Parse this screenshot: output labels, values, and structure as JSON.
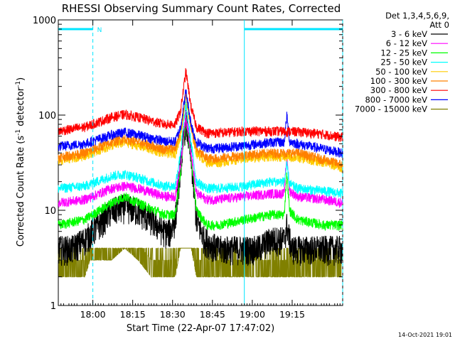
{
  "chart_data": {
    "type": "line",
    "title": "RHESSI Observing Summary Count Rates, Corrected",
    "xlabel": "Start Time (22-Apr-07 17:47:02)",
    "ylabel_parts": [
      "Corrected Count Rate (s",
      "-1",
      " detector",
      "-1",
      ")"
    ],
    "yscale": "log",
    "ylim": [
      1,
      1000
    ],
    "xlim_minutes": [
      0,
      107
    ],
    "x_ticks": [
      {
        "minute": 13,
        "label": "18:00"
      },
      {
        "minute": 28,
        "label": "18:15"
      },
      {
        "minute": 43,
        "label": "18:30"
      },
      {
        "minute": 58,
        "label": "18:45"
      },
      {
        "minute": 73,
        "label": "19:00"
      },
      {
        "minute": 88,
        "label": "19:15"
      }
    ],
    "y_ticks": [
      {
        "value": 1,
        "label": "1"
      },
      {
        "value": 10,
        "label": "10"
      },
      {
        "value": 100,
        "label": "100"
      },
      {
        "value": 1000,
        "label": "1000"
      }
    ],
    "legend_header": [
      "Det 1,3,4,5,6,9,",
      "Att 0"
    ],
    "series": [
      {
        "name": "3 - 6 keV",
        "color": "#000000",
        "x": [
          0,
          5,
          10,
          15,
          20,
          25,
          30,
          35,
          40,
          42,
          44,
          46,
          48,
          50,
          52,
          55,
          60,
          65,
          70,
          75,
          80,
          85,
          86,
          87,
          88,
          90,
          95,
          100,
          105,
          107
        ],
        "y": [
          4,
          4,
          5,
          7,
          10,
          11,
          10,
          8,
          6,
          6,
          8,
          30,
          90,
          35,
          8,
          5,
          4,
          4,
          4,
          4,
          5,
          5,
          7,
          5,
          4,
          4,
          4,
          4,
          4,
          4
        ]
      },
      {
        "name": "6 - 12 keV",
        "color": "#ff00ff",
        "x": [
          0,
          10,
          20,
          25,
          30,
          40,
          44,
          46,
          48,
          50,
          52,
          56,
          60,
          70,
          80,
          85,
          86,
          87,
          90,
          100,
          107
        ],
        "y": [
          12,
          13,
          17,
          18,
          17,
          14,
          14,
          30,
          100,
          40,
          15,
          13,
          13,
          14,
          15,
          15,
          40,
          16,
          14,
          13,
          12
        ]
      },
      {
        "name": "12 - 25 keV",
        "color": "#00ff00",
        "x": [
          0,
          10,
          20,
          25,
          30,
          40,
          44,
          46,
          48,
          50,
          52,
          56,
          60,
          70,
          80,
          85,
          86,
          87,
          90,
          100,
          107
        ],
        "y": [
          7,
          8,
          12,
          14,
          12,
          9,
          9,
          25,
          95,
          35,
          10,
          7,
          7,
          8,
          9,
          9,
          25,
          10,
          8,
          7,
          7
        ]
      },
      {
        "name": "25 - 50 keV",
        "color": "#00ffff",
        "x": [
          0,
          10,
          20,
          25,
          30,
          40,
          44,
          46,
          48,
          50,
          52,
          56,
          60,
          70,
          80,
          85,
          86,
          87,
          90,
          100,
          107
        ],
        "y": [
          17,
          18,
          23,
          24,
          22,
          18,
          18,
          40,
          130,
          50,
          20,
          17,
          17,
          18,
          20,
          20,
          30,
          19,
          17,
          16,
          15
        ]
      },
      {
        "name": "50 - 100 keV",
        "color": "#ffcc00",
        "x": [
          0,
          10,
          20,
          25,
          30,
          40,
          44,
          46,
          48,
          50,
          52,
          56,
          60,
          70,
          80,
          90,
          100,
          107
        ],
        "y": [
          33,
          38,
          48,
          52,
          48,
          40,
          40,
          60,
          160,
          70,
          40,
          32,
          32,
          35,
          37,
          36,
          32,
          28
        ]
      },
      {
        "name": "100 - 300 keV",
        "color": "#ff8000",
        "x": [
          0,
          10,
          20,
          25,
          30,
          40,
          44,
          46,
          48,
          50,
          52,
          56,
          60,
          70,
          80,
          90,
          100,
          107
        ],
        "y": [
          36,
          40,
          52,
          57,
          52,
          44,
          45,
          65,
          170,
          75,
          43,
          35,
          35,
          38,
          40,
          40,
          34,
          30
        ]
      },
      {
        "name": "300 - 800 keV",
        "color": "#ff0000",
        "x": [
          0,
          10,
          20,
          25,
          30,
          40,
          44,
          46,
          48,
          50,
          52,
          56,
          60,
          70,
          80,
          90,
          100,
          107
        ],
        "y": [
          68,
          75,
          95,
          102,
          95,
          80,
          80,
          110,
          290,
          120,
          75,
          65,
          65,
          68,
          68,
          67,
          63,
          58
        ]
      },
      {
        "name": "800 - 7000 keV",
        "color": "#0000ff",
        "x": [
          0,
          10,
          20,
          25,
          30,
          40,
          44,
          46,
          48,
          50,
          52,
          56,
          60,
          70,
          80,
          85,
          86,
          87,
          90,
          100,
          107
        ],
        "y": [
          47,
          50,
          62,
          66,
          62,
          53,
          53,
          75,
          180,
          80,
          52,
          45,
          45,
          48,
          52,
          52,
          100,
          53,
          50,
          44,
          40
        ]
      },
      {
        "name": "7000 - 15000 keV",
        "color": "#808000",
        "x": [
          0,
          5,
          8,
          10,
          12,
          15,
          20,
          25,
          30,
          35,
          40,
          44,
          46,
          48,
          50,
          52,
          56,
          60,
          70,
          80,
          90,
          100,
          107
        ],
        "y": [
          2,
          2,
          2,
          2,
          3,
          3,
          3,
          4,
          3,
          2,
          2,
          2,
          4,
          14,
          4,
          2,
          2,
          2,
          2,
          2,
          2,
          2,
          2
        ]
      }
    ],
    "annotations": {
      "night_bar": {
        "start_minute": 0,
        "end_minute": 13,
        "label": "N",
        "value": 800
      },
      "saa_bar": {
        "start_minute": 70,
        "end_minute": 107,
        "label": "",
        "value": 800
      },
      "vertical_markers_minutes": [
        13,
        70,
        107
      ]
    }
  },
  "footer": {
    "timestamp": "14-Oct-2021 19:01"
  }
}
